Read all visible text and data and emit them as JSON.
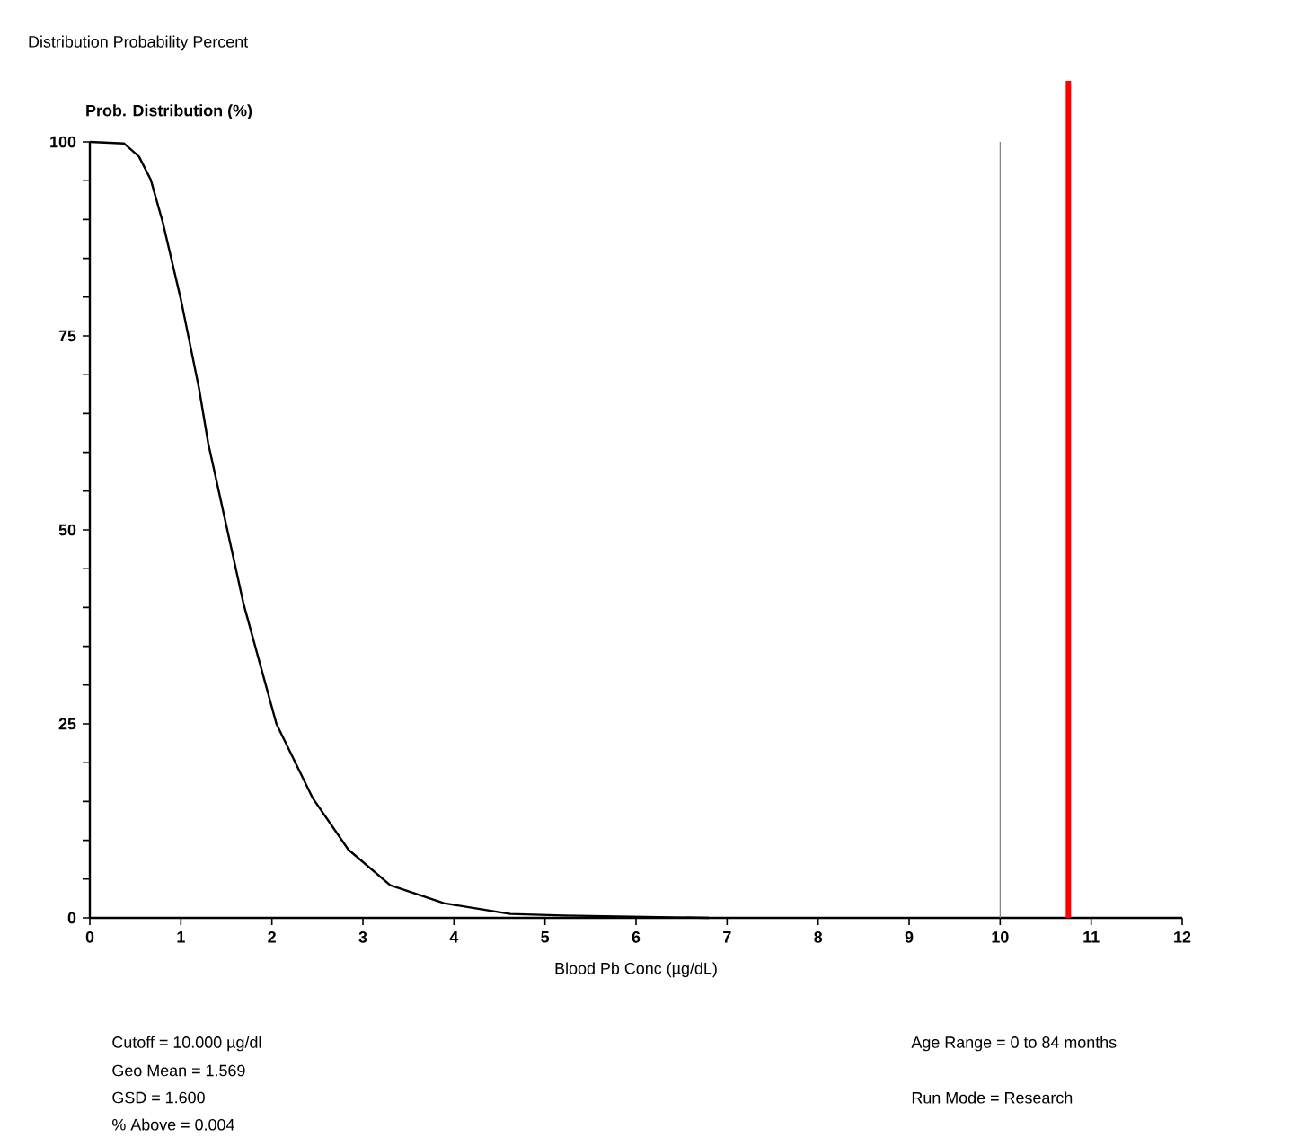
{
  "chart_data": {
    "type": "line",
    "title": "Distribution Probability Percent",
    "xlabel": "Blood Pb Conc (µg/dL)",
    "ylabel": "Prob. Distribution (%)",
    "x": [
      0,
      0.375,
      0.54,
      0.67,
      0.8,
      1.0,
      1.2,
      1.3,
      1.51,
      1.69,
      2.05,
      2.45,
      2.84,
      3.3,
      3.89,
      4.62,
      5.2,
      6.8
    ],
    "series": [
      {
        "color": "#000000",
        "values": [
          100,
          99.8,
          98.1,
          95.1,
          89.7,
          79.7,
          68.2,
          61.2,
          50,
          40.4,
          25,
          15.4,
          8.8,
          4.2,
          1.9,
          0.5,
          0.3,
          0
        ]
      }
    ],
    "xlim": [
      0,
      12
    ],
    "ylim": [
      0,
      100
    ],
    "xticks": [
      0,
      1,
      2,
      3,
      4,
      5,
      6,
      7,
      8,
      9,
      10,
      11,
      12
    ],
    "yticks": [
      0,
      {
        "value": 5,
        "label": null
      },
      {
        "value": 10,
        "label": null
      },
      {
        "value": 15,
        "label": null
      },
      {
        "value": 20,
        "label": null
      },
      25,
      {
        "value": 30,
        "label": null
      },
      {
        "value": 35,
        "label": null
      },
      {
        "value": 40,
        "label": null
      },
      {
        "value": 45,
        "label": null
      },
      50,
      {
        "value": 55,
        "label": null
      },
      {
        "value": 60,
        "label": null
      },
      {
        "value": 65,
        "label": null
      },
      {
        "value": 70,
        "label": null
      },
      75,
      {
        "value": 80,
        "label": null
      },
      {
        "value": 85,
        "label": null
      },
      {
        "value": 90,
        "label": null
      },
      {
        "value": 95,
        "label": null
      },
      100
    ],
    "ref_lines": [
      {
        "axis": "x",
        "value": 10,
        "color": "#808080"
      },
      {
        "axis": "x",
        "value": 10.75,
        "color": "#ff0000"
      }
    ],
    "marker": "none",
    "line_style": "solid",
    "grid": false,
    "annotations": [
      "Cutoff = 10.000  µg/dl",
      "Geo Mean = 1.569",
      "GSD = 1.600",
      "% Above = 0.004",
      "Age Range = 0 to 84 months",
      "Run Mode = Research"
    ]
  }
}
